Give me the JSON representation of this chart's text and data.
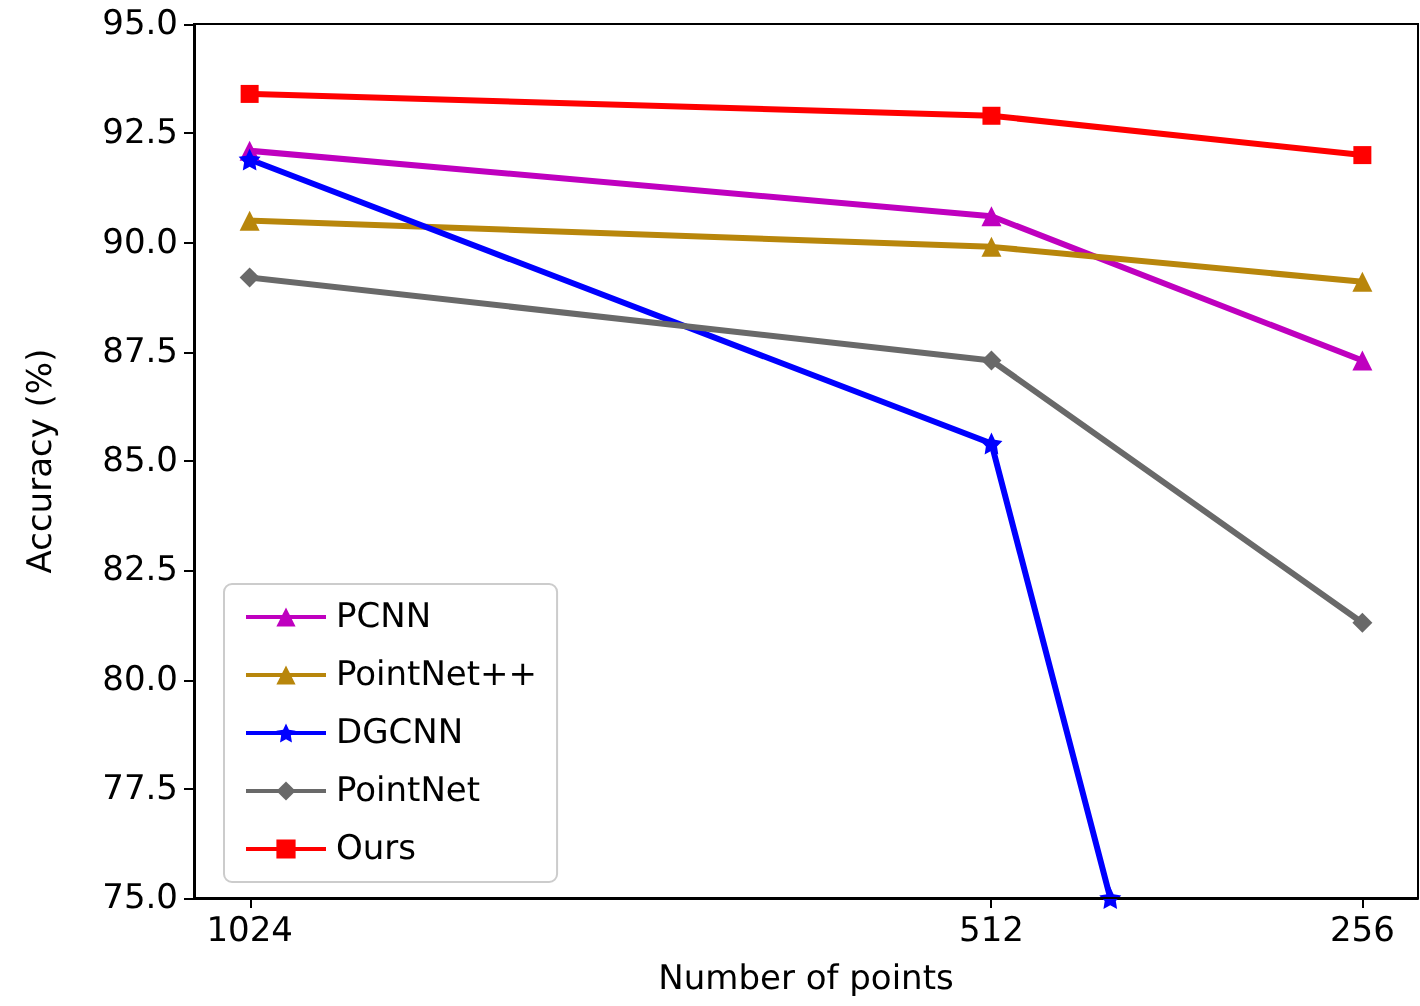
{
  "chart_data": {
    "type": "line",
    "xlabel": "Number of points",
    "ylabel": "Accuracy (%)",
    "x": [
      1024,
      512,
      256
    ],
    "xlim": [
      1062.4,
      217.6
    ],
    "xticks": [
      1024,
      512,
      256
    ],
    "ylim": [
      75,
      95
    ],
    "yticks": [
      {
        "value": 75,
        "label": "75.0"
      },
      {
        "value": 77.5,
        "label": "77.5"
      },
      {
        "value": 80,
        "label": "80.0"
      },
      {
        "value": 82.5,
        "label": "82.5"
      },
      {
        "value": 85,
        "label": "85.0"
      },
      {
        "value": 87.5,
        "label": "87.5"
      },
      {
        "value": 90,
        "label": "90.0"
      },
      {
        "value": 92.5,
        "label": "92.5"
      },
      {
        "value": 95,
        "label": "95.0"
      }
    ],
    "grid": false,
    "legend": "bottom left",
    "line_style": "solid",
    "series": [
      {
        "name": "PCNN",
        "color": "#bf00bf",
        "marker": "triangle",
        "values": [
          92.1,
          90.6,
          87.3
        ]
      },
      {
        "name": "PointNet++",
        "color": "#b8860b",
        "marker": "triangle",
        "values": [
          90.5,
          89.9,
          89.1
        ]
      },
      {
        "name": "DGCNN",
        "color": "#0000ff",
        "marker": "star",
        "x": [
          1024,
          512,
          430
        ],
        "values": [
          91.9,
          85.4,
          75
        ]
      },
      {
        "name": "PointNet",
        "color": "#696969",
        "marker": "diamond",
        "values": [
          89.2,
          87.3,
          81.3
        ]
      },
      {
        "name": "Ours",
        "color": "#ff0000",
        "marker": "square",
        "values": [
          93.4,
          92.9,
          92.0
        ]
      }
    ]
  }
}
